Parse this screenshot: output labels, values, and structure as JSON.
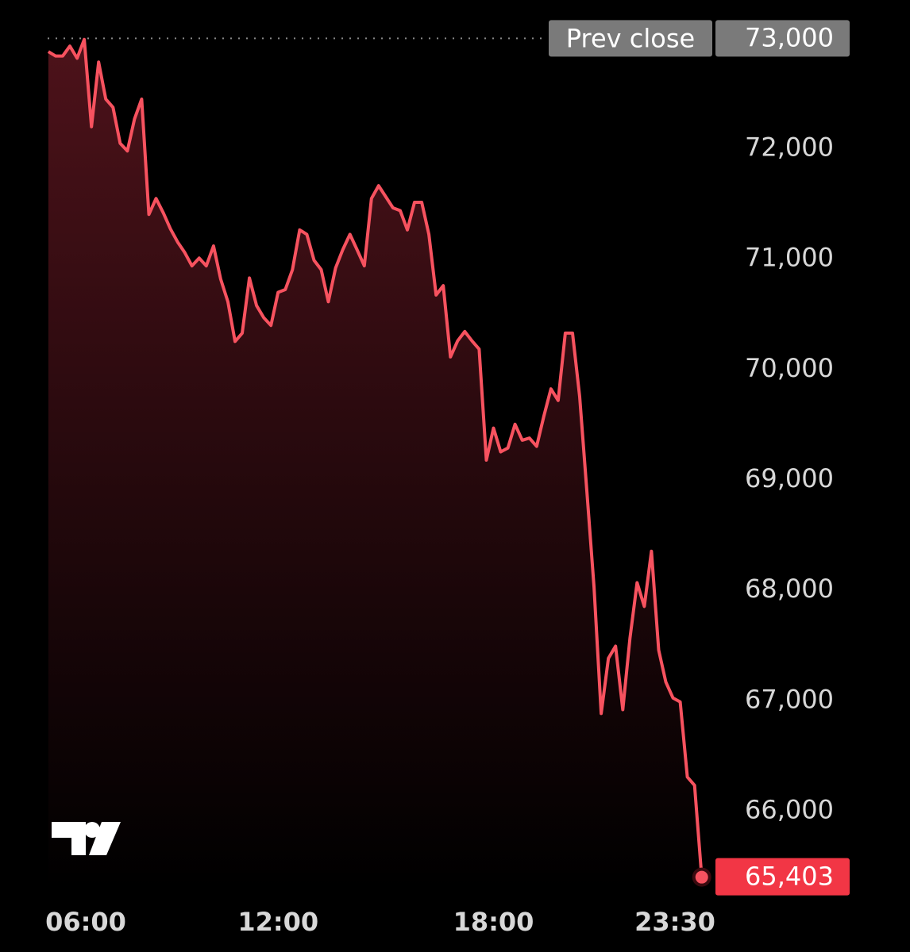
{
  "chart_data": {
    "type": "area-line",
    "x": [
      5.6,
      5.8,
      6,
      6.2,
      6.4,
      6.6,
      6.8,
      7,
      7.2,
      7.4,
      7.6,
      7.8,
      8,
      8.2,
      8.4,
      8.6,
      8.8,
      9,
      9.2,
      9.4,
      9.6,
      9.8,
      10,
      10.2,
      10.4,
      10.6,
      10.8,
      11,
      11.2,
      11.4,
      11.6,
      11.8,
      12,
      12.2,
      12.4,
      12.6,
      12.8,
      13,
      13.2,
      13.4,
      13.6,
      13.8,
      14,
      14.2,
      14.4,
      14.6,
      14.8,
      15,
      15.2,
      15.4,
      15.6,
      15.8,
      16,
      16.2,
      16.4,
      16.6,
      16.8,
      17,
      17.2,
      17.4,
      17.6,
      17.8,
      18,
      18.2,
      18.4,
      18.6,
      18.8,
      19,
      19.2,
      19.4,
      19.6,
      19.8,
      20,
      20.2,
      20.4,
      20.6,
      20.8,
      21,
      21.2,
      21.4,
      21.6,
      21.8,
      22,
      22.2,
      22.4,
      22.6,
      22.8,
      23,
      23.2,
      23.4,
      23.6,
      23.8
    ],
    "values": [
      72880,
      72840,
      72840,
      72930,
      72820,
      72990,
      72200,
      72785,
      72450,
      72375,
      72050,
      71980,
      72270,
      72450,
      71405,
      71550,
      71420,
      71275,
      71155,
      71060,
      70940,
      71010,
      70940,
      71120,
      70820,
      70615,
      70255,
      70330,
      70830,
      70580,
      70470,
      70400,
      70700,
      70725,
      70905,
      71265,
      71225,
      70990,
      70905,
      70615,
      70920,
      71085,
      71225,
      71085,
      70940,
      71550,
      71665,
      71565,
      71465,
      71440,
      71265,
      71515,
      71515,
      71225,
      70675,
      70760,
      70115,
      70260,
      70345,
      70260,
      70185,
      69180,
      69470,
      69255,
      69290,
      69505,
      69360,
      69380,
      69305,
      69575,
      69825,
      69720,
      70330,
      70330,
      69755,
      68895,
      68030,
      66885,
      67385,
      67495,
      66920,
      67565,
      68070,
      67855,
      68355,
      67460,
      67170,
      67025,
      66990,
      66310,
      66235,
      65403
    ],
    "color": "#f7525f",
    "xlim": [
      5.58,
      24.16
    ],
    "ylim": [
      65300,
      73060
    ],
    "xticks": [
      {
        "value": 6,
        "label": "06:00"
      },
      {
        "value": 12,
        "label": "12:00"
      },
      {
        "value": 18,
        "label": "18:00"
      },
      {
        "value": 23.5,
        "label": "23:30"
      }
    ],
    "yticks": [
      {
        "value": 66000,
        "label": "66,000"
      },
      {
        "value": 67000,
        "label": "67,000"
      },
      {
        "value": 68000,
        "label": "68,000"
      },
      {
        "value": 69000,
        "label": "69,000"
      },
      {
        "value": 70000,
        "label": "70,000"
      },
      {
        "value": 71000,
        "label": "71,000"
      },
      {
        "value": 72000,
        "label": "72,000"
      }
    ],
    "prev_close": {
      "label": "Prev close",
      "value": 73000,
      "value_label": "73,000"
    },
    "last_price": {
      "value": 65403,
      "label": "65,403"
    }
  }
}
